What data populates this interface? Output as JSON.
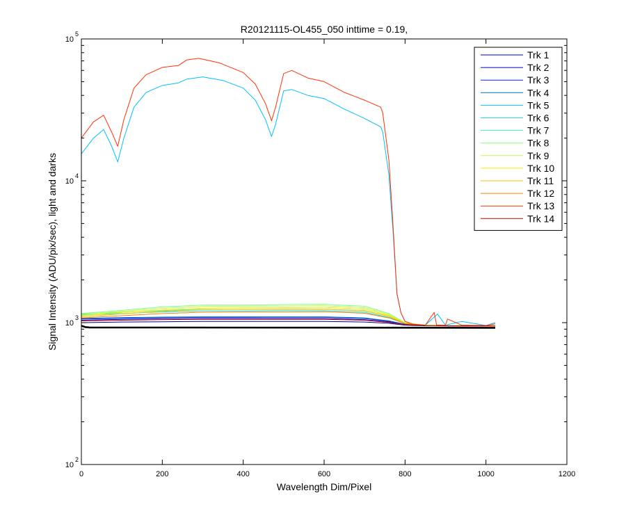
{
  "chart_data": {
    "type": "line",
    "title": "R20121115-OL455_050 inttime = 0.19,",
    "xlabel": "Wavelength Dim/Pixel",
    "ylabel": "Signal Intensity (ADU/pix/sec), light and darks",
    "xlim": [
      0,
      1200
    ],
    "ylim": [
      100,
      100000
    ],
    "yscale": "log",
    "grid": false,
    "legend_position": "top-right",
    "x_ticks": [
      "0",
      "200",
      "400",
      "600",
      "800",
      "1000",
      "1200"
    ],
    "y_ticks": [
      {
        "base": "10",
        "exp": "2"
      },
      {
        "base": "10",
        "exp": "3"
      },
      {
        "base": "10",
        "exp": "4"
      },
      {
        "base": "10",
        "exp": "5"
      }
    ],
    "series": [
      {
        "name": "Trk 1",
        "color": "#00008F",
        "x": [
          0,
          100,
          200,
          300,
          400,
          500,
          600,
          700,
          760,
          800,
          850,
          900,
          1023
        ],
        "y": [
          1000,
          1010,
          1015,
          1020,
          1020,
          1020,
          1020,
          1010,
          990,
          960,
          950,
          948,
          945
        ]
      },
      {
        "name": "Trk 2",
        "color": "#0000BF",
        "x": [
          0,
          100,
          200,
          300,
          400,
          500,
          600,
          700,
          760,
          800,
          850,
          900,
          1023
        ],
        "y": [
          1040,
          1055,
          1065,
          1070,
          1070,
          1070,
          1070,
          1050,
          1015,
          975,
          955,
          950,
          948
        ]
      },
      {
        "name": "Trk 3",
        "color": "#0020FF",
        "x": [
          0,
          100,
          200,
          300,
          400,
          500,
          600,
          700,
          760,
          800,
          850,
          900,
          1023
        ],
        "y": [
          1060,
          1075,
          1085,
          1090,
          1090,
          1092,
          1092,
          1070,
          1025,
          975,
          955,
          950,
          948
        ]
      },
      {
        "name": "Trk 4",
        "color": "#0070C0",
        "x": [
          0,
          100,
          200,
          300,
          400,
          500,
          600,
          700,
          760,
          800,
          850,
          900,
          1023
        ],
        "y": [
          1070,
          1085,
          1095,
          1100,
          1100,
          1100,
          1100,
          1080,
          1030,
          975,
          955,
          950,
          948
        ]
      },
      {
        "name": "Trk 5",
        "color": "#00BFFF",
        "x": [
          0,
          30,
          55,
          75,
          90,
          105,
          130,
          160,
          200,
          240,
          260,
          300,
          350,
          400,
          430,
          455,
          470,
          480,
          500,
          520,
          560,
          600,
          650,
          700,
          740,
          745,
          760,
          770,
          780,
          790,
          800,
          820,
          850,
          880,
          900,
          940,
          1000,
          1023
        ],
        "y": [
          15500,
          20000,
          23000,
          17500,
          13600,
          20000,
          33000,
          42000,
          47000,
          49000,
          52000,
          54000,
          51000,
          45000,
          37000,
          27000,
          20500,
          25000,
          43000,
          44000,
          40000,
          38000,
          32000,
          27500,
          24000,
          22000,
          11000,
          4500,
          1600,
          1170,
          1020,
          975,
          960,
          1150,
          960,
          1020,
          955,
          1000
        ]
      },
      {
        "name": "Trk 6",
        "color": "#20DFDF",
        "x": [
          0,
          100,
          200,
          300,
          400,
          500,
          600,
          700,
          760,
          800,
          850,
          900,
          1023
        ],
        "y": [
          1130,
          1160,
          1190,
          1210,
          1210,
          1215,
          1215,
          1185,
          1090,
          985,
          955,
          950,
          948
        ]
      },
      {
        "name": "Trk 7",
        "color": "#40EFBF",
        "x": [
          0,
          100,
          200,
          300,
          400,
          500,
          600,
          700,
          760,
          800,
          850,
          900,
          1023
        ],
        "y": [
          1150,
          1185,
          1215,
          1240,
          1240,
          1245,
          1245,
          1215,
          1110,
          990,
          958,
          952,
          950
        ]
      },
      {
        "name": "Trk 8",
        "color": "#7FFF7F",
        "x": [
          0,
          100,
          200,
          300,
          400,
          500,
          600,
          700,
          760,
          800,
          850,
          900,
          1023
        ],
        "y": [
          1160,
          1220,
          1290,
          1330,
          1330,
          1340,
          1345,
          1305,
          1160,
          1000,
          960,
          955,
          952
        ]
      },
      {
        "name": "Trk 9",
        "color": "#BFFF40",
        "x": [
          0,
          100,
          200,
          300,
          400,
          500,
          600,
          700,
          760,
          800,
          850,
          900,
          1023
        ],
        "y": [
          1140,
          1200,
          1260,
          1300,
          1305,
          1310,
          1315,
          1275,
          1140,
          995,
          958,
          953,
          950
        ]
      },
      {
        "name": "Trk 10",
        "color": "#EFEF00",
        "x": [
          0,
          100,
          200,
          300,
          400,
          500,
          600,
          700,
          760,
          800,
          850,
          900,
          1023
        ],
        "y": [
          1120,
          1180,
          1230,
          1265,
          1270,
          1275,
          1280,
          1245,
          1125,
          992,
          957,
          952,
          950
        ]
      },
      {
        "name": "Trk 11",
        "color": "#FFBF00",
        "x": [
          0,
          100,
          200,
          300,
          400,
          500,
          600,
          700,
          760,
          800,
          850,
          900,
          1023
        ],
        "y": [
          1100,
          1155,
          1200,
          1235,
          1240,
          1240,
          1245,
          1210,
          1110,
          990,
          956,
          951,
          949
        ]
      },
      {
        "name": "Trk 12",
        "color": "#FF7F00",
        "x": [
          0,
          100,
          200,
          300,
          400,
          500,
          600,
          700,
          760,
          800,
          850,
          900,
          1023
        ],
        "y": [
          1080,
          1120,
          1160,
          1185,
          1190,
          1190,
          1195,
          1165,
          1080,
          985,
          955,
          950,
          948
        ]
      },
      {
        "name": "Trk 13",
        "color": "#FF3000",
        "x": [
          0,
          30,
          55,
          75,
          90,
          105,
          130,
          160,
          200,
          240,
          260,
          290,
          340,
          400,
          430,
          455,
          470,
          480,
          500,
          520,
          560,
          600,
          650,
          700,
          740,
          745,
          760,
          770,
          780,
          790,
          800,
          820,
          850,
          872,
          878,
          900,
          905,
          940,
          1000,
          1023
        ],
        "y": [
          20000,
          26000,
          29000,
          22000,
          17500,
          27000,
          45000,
          56000,
          63000,
          65000,
          71000,
          73000,
          68000,
          58000,
          48000,
          35000,
          26500,
          33000,
          57000,
          60000,
          53000,
          50000,
          42000,
          37000,
          33000,
          30000,
          14000,
          5000,
          1600,
          1170,
          1020,
          975,
          960,
          1180,
          960,
          960,
          1060,
          960,
          955,
          980
        ]
      },
      {
        "name": "Trk 14",
        "color": "#BF0000",
        "x": [
          0,
          100,
          200,
          300,
          400,
          500,
          600,
          700,
          760,
          800,
          850,
          900,
          1023
        ],
        "y": [
          1030,
          1040,
          1050,
          1055,
          1055,
          1055,
          1055,
          1040,
          1005,
          970,
          955,
          950,
          948
        ]
      },
      {
        "name": "",
        "color": "#000000",
        "width": 2.6,
        "x": [
          0,
          10,
          20,
          1023
        ],
        "y": [
          950,
          930,
          925,
          920
        ]
      }
    ]
  }
}
